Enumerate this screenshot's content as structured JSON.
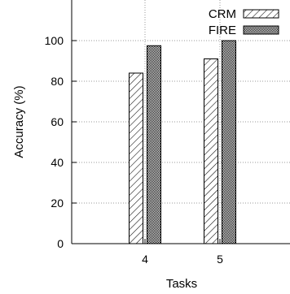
{
  "chart_data": {
    "type": "bar",
    "title": "",
    "xlabel": "Tasks",
    "ylabel": "Accuracy (%)",
    "categories": [
      "4",
      "5"
    ],
    "series": [
      {
        "name": "CRM",
        "values": [
          84,
          91
        ],
        "pattern": "diagonal-hatch"
      },
      {
        "name": "FIRE",
        "values": [
          97.5,
          100
        ],
        "pattern": "dense-checker"
      }
    ],
    "ylim": [
      0,
      120
    ],
    "yticks": [
      0,
      20,
      40,
      60,
      80,
      100
    ],
    "grid": true,
    "legend_position": "top-right",
    "colors": {
      "stroke": "#000000",
      "grid": "#9a9a9a",
      "background": "#ffffff"
    }
  }
}
